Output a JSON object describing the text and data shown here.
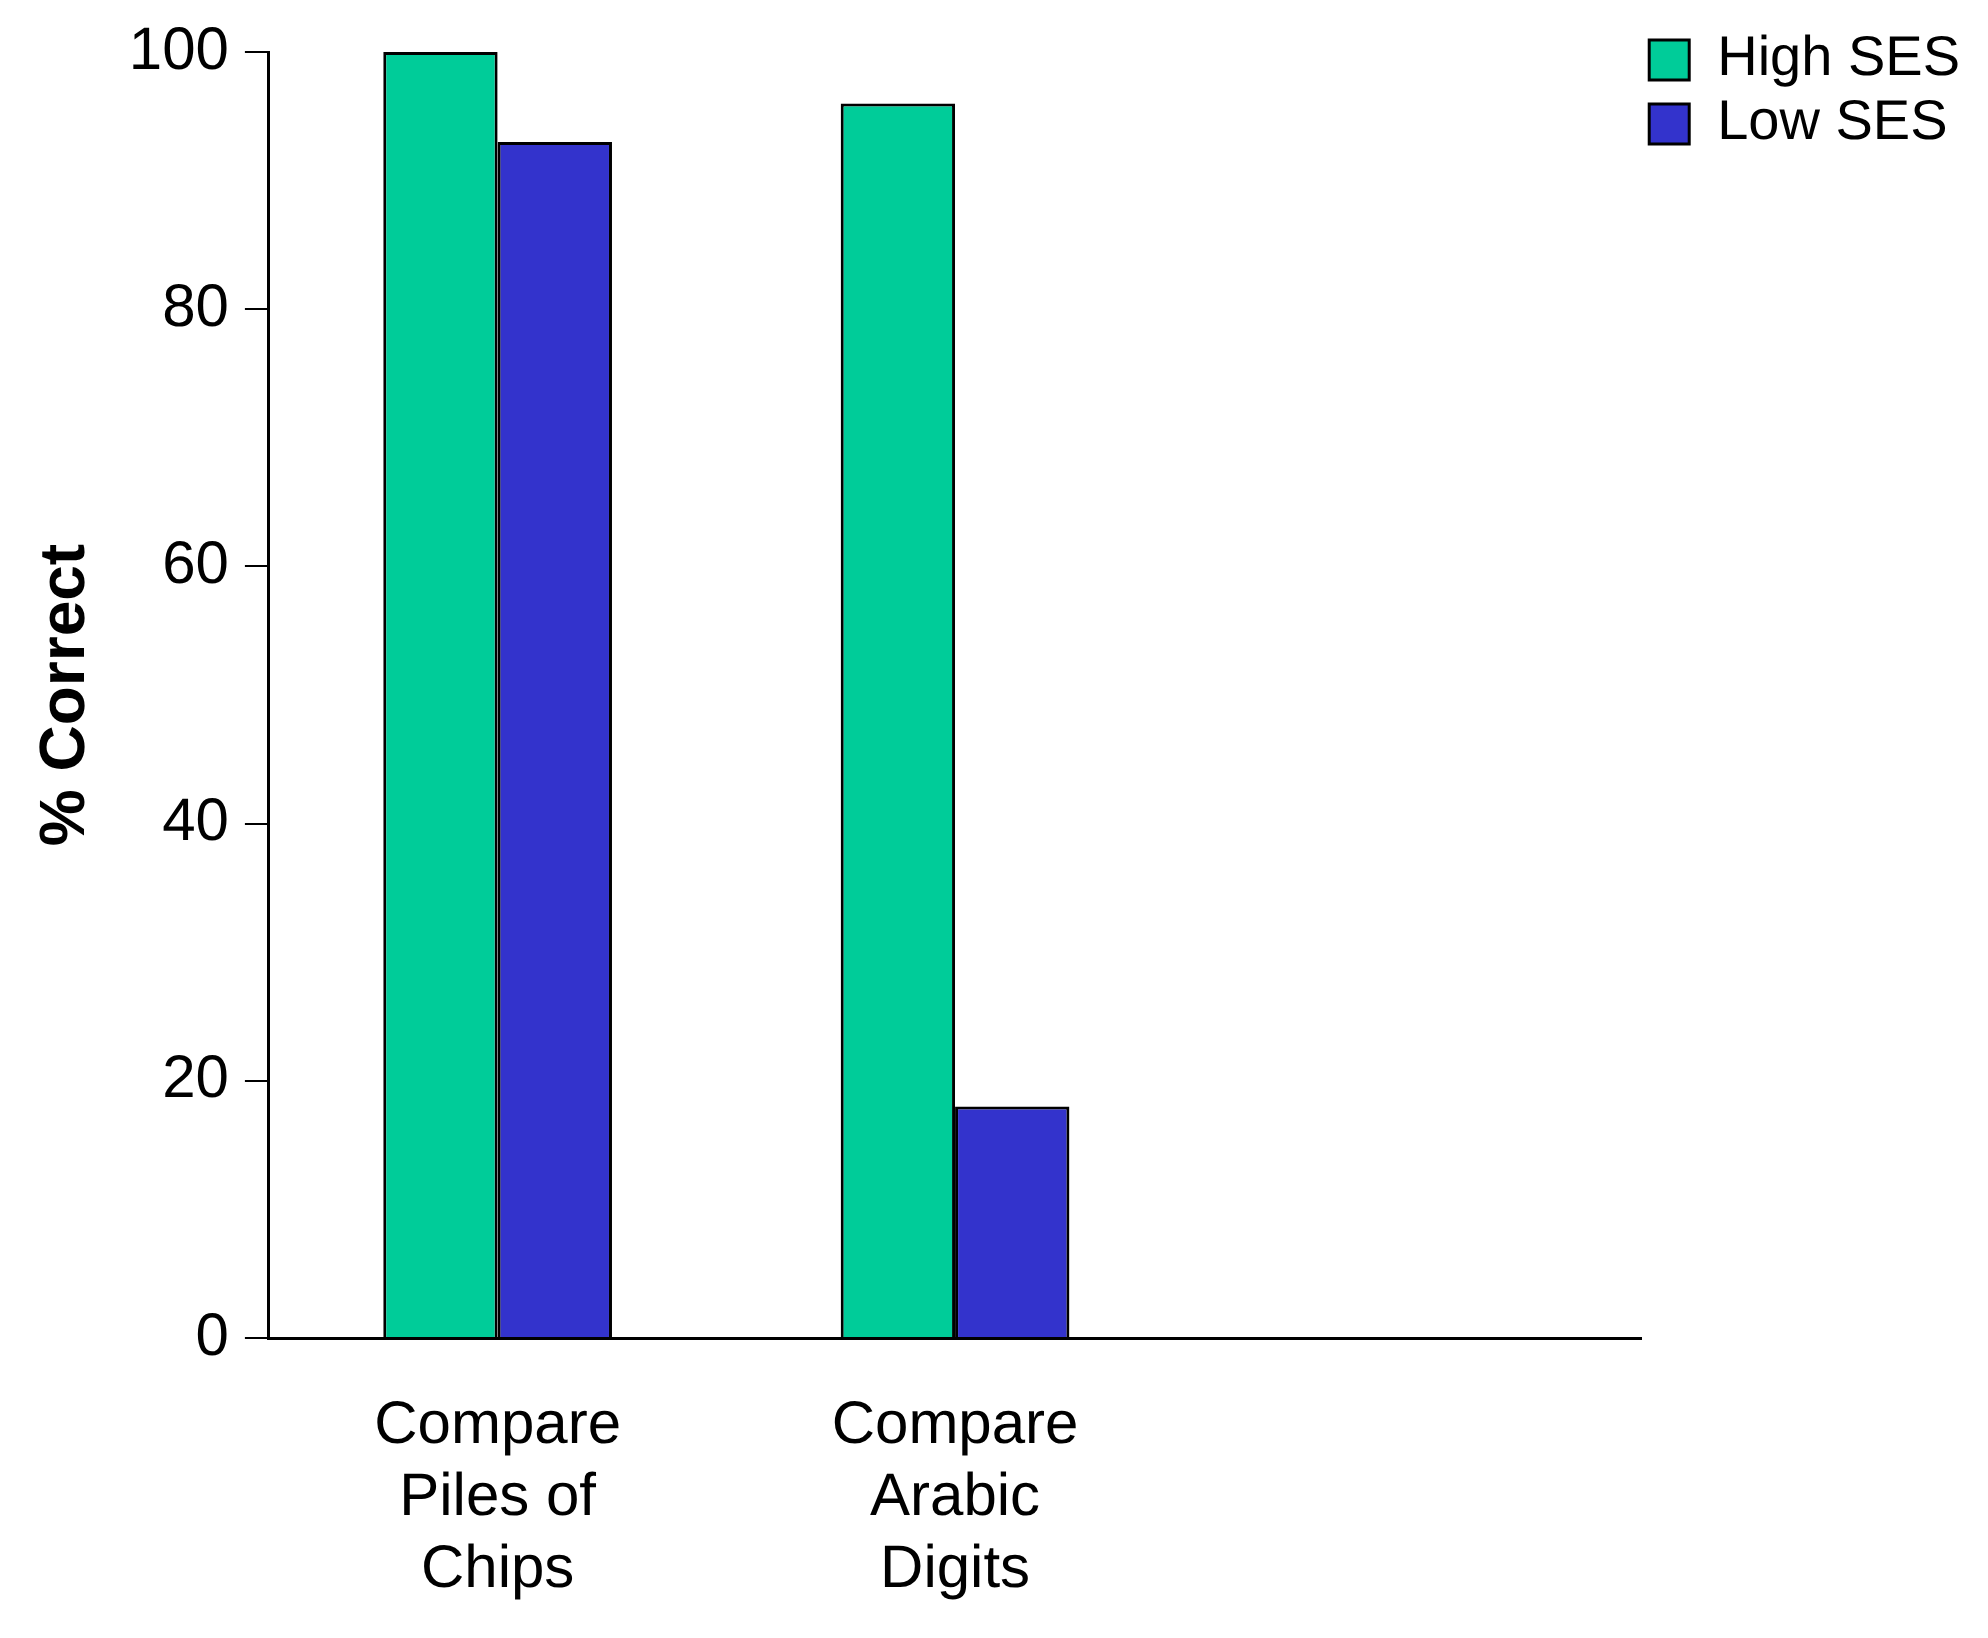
{
  "chart_data": {
    "type": "bar",
    "ylabel": "% Correct",
    "categories": [
      "Compare Piles of Chips",
      "Compare Arabic Digits",
      null
    ],
    "series": [
      {
        "name": "High SES",
        "color": "#00cc99",
        "values": [
          100,
          96,
          null
        ]
      },
      {
        "name": "Low SES",
        "color": "#3333cc",
        "values": [
          93,
          18,
          null
        ]
      }
    ],
    "ylim": [
      0,
      100
    ],
    "yticks": [
      0,
      20,
      40,
      60,
      80,
      100
    ],
    "grid": false,
    "legend": "top right"
  }
}
